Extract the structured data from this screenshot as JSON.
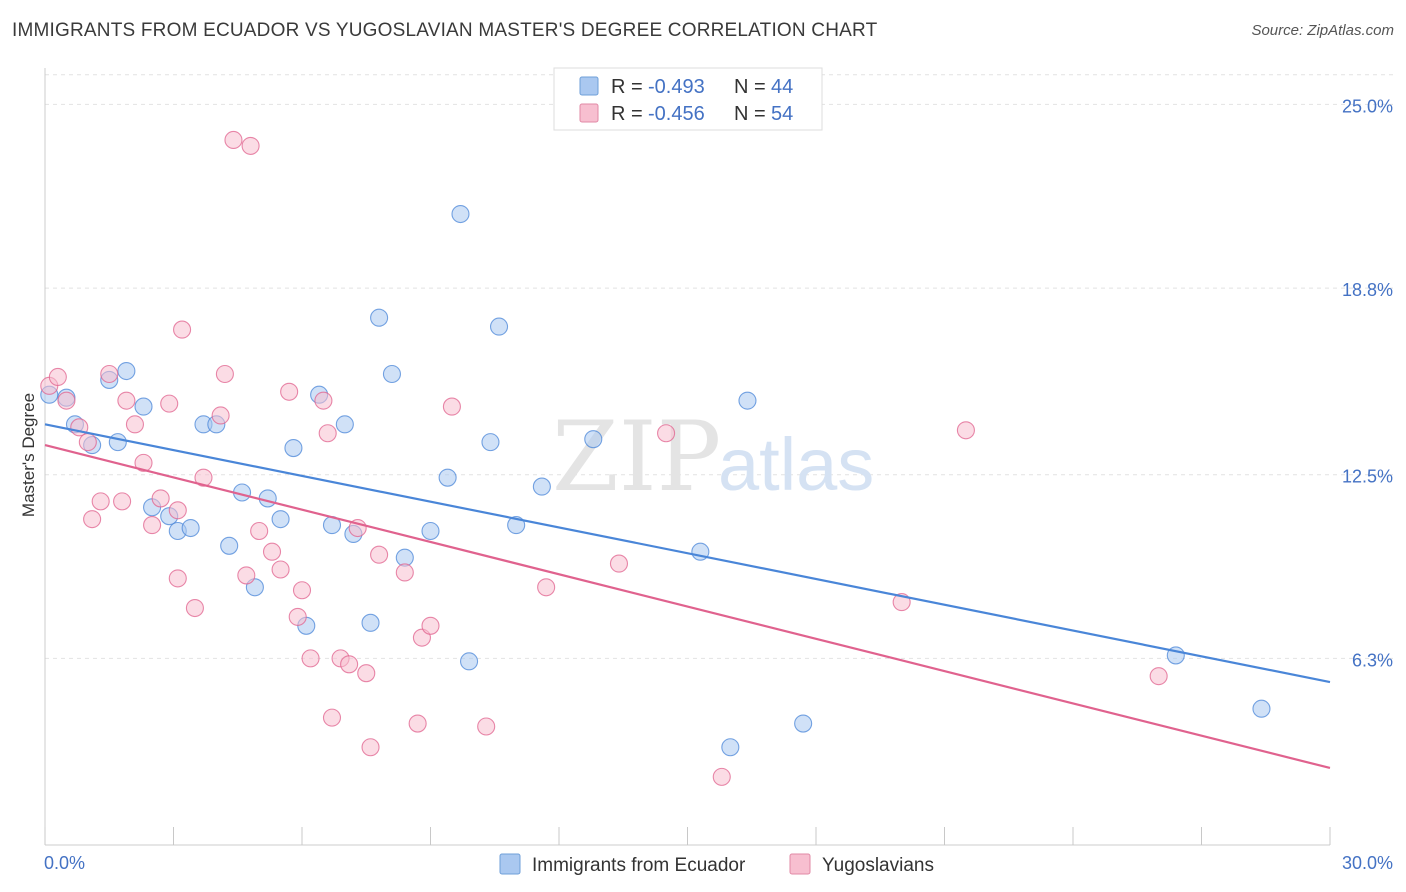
{
  "title": "IMMIGRANTS FROM ECUADOR VS YUGOSLAVIAN MASTER'S DEGREE CORRELATION CHART",
  "source": "Source: ZipAtlas.com",
  "watermark": {
    "part1": "ZIP",
    "part2": "atlas"
  },
  "legend": {
    "r_label": "R =",
    "n_label": "N =",
    "items": [
      {
        "r": "-0.493",
        "n": "44",
        "color": "#aac8f0",
        "stroke": "#6f9fd8"
      },
      {
        "r": "-0.456",
        "n": "54",
        "color": "#f7bfd0",
        "stroke": "#e28aa6"
      }
    ]
  },
  "bottom_legend": [
    {
      "label": "Immigrants from Ecuador",
      "color": "#aac8f0",
      "stroke": "#6f9fd8"
    },
    {
      "label": "Yugoslavians",
      "color": "#f7bfd0",
      "stroke": "#e28aa6"
    }
  ],
  "chart_data": {
    "type": "scatter",
    "title": "IMMIGRANTS FROM ECUADOR VS YUGOSLAVIAN MASTER'S DEGREE CORRELATION CHART",
    "xlabel": "",
    "ylabel": "Master's Degree",
    "xlim": [
      0,
      30
    ],
    "ylim": [
      0,
      26.5
    ],
    "x_tick_labels": [
      "0.0%",
      "30.0%"
    ],
    "y_ticks": [
      6.3,
      12.5,
      18.8,
      25.0
    ],
    "y_tick_labels": [
      "6.3%",
      "12.5%",
      "18.8%",
      "25.0%"
    ],
    "grid": true,
    "legend_position": "top-center",
    "series": [
      {
        "name": "Immigrants from Ecuador",
        "color": "#4a86d8",
        "fill": "#aac8f0",
        "trend": {
          "x": [
            0,
            30
          ],
          "y": [
            14.2,
            5.5
          ]
        },
        "points": [
          [
            0.1,
            15.2
          ],
          [
            0.5,
            15.1
          ],
          [
            0.7,
            14.2
          ],
          [
            1.1,
            13.5
          ],
          [
            1.5,
            15.7
          ],
          [
            1.7,
            13.6
          ],
          [
            1.9,
            16.0
          ],
          [
            2.3,
            14.8
          ],
          [
            2.5,
            11.4
          ],
          [
            2.9,
            11.1
          ],
          [
            3.1,
            10.6
          ],
          [
            3.4,
            10.7
          ],
          [
            3.7,
            14.2
          ],
          [
            4.0,
            14.2
          ],
          [
            4.3,
            10.1
          ],
          [
            4.6,
            11.9
          ],
          [
            4.9,
            8.7
          ],
          [
            5.2,
            11.7
          ],
          [
            5.5,
            11.0
          ],
          [
            5.8,
            13.4
          ],
          [
            6.1,
            7.4
          ],
          [
            6.4,
            15.2
          ],
          [
            6.7,
            10.8
          ],
          [
            7.0,
            14.2
          ],
          [
            7.2,
            10.5
          ],
          [
            7.6,
            7.5
          ],
          [
            7.8,
            17.8
          ],
          [
            8.1,
            15.9
          ],
          [
            8.4,
            9.7
          ],
          [
            9.0,
            10.6
          ],
          [
            9.4,
            12.4
          ],
          [
            9.7,
            21.3
          ],
          [
            9.9,
            6.2
          ],
          [
            10.4,
            13.6
          ],
          [
            10.6,
            17.5
          ],
          [
            11.0,
            10.8
          ],
          [
            11.6,
            12.1
          ],
          [
            12.8,
            13.7
          ],
          [
            15.3,
            9.9
          ],
          [
            16.0,
            3.3
          ],
          [
            16.4,
            15.0
          ],
          [
            17.7,
            4.1
          ],
          [
            26.4,
            6.4
          ],
          [
            28.4,
            4.6
          ]
        ]
      },
      {
        "name": "Yugoslavians",
        "color": "#e0628e",
        "fill": "#f7bfd0",
        "trend": {
          "x": [
            0,
            30
          ],
          "y": [
            13.5,
            2.6
          ]
        },
        "points": [
          [
            0.1,
            15.5
          ],
          [
            0.3,
            15.8
          ],
          [
            0.5,
            15.0
          ],
          [
            0.8,
            14.1
          ],
          [
            1.0,
            13.6
          ],
          [
            1.1,
            11.0
          ],
          [
            1.3,
            11.6
          ],
          [
            1.5,
            15.9
          ],
          [
            1.8,
            11.6
          ],
          [
            1.9,
            15.0
          ],
          [
            2.1,
            14.2
          ],
          [
            2.3,
            12.9
          ],
          [
            2.5,
            10.8
          ],
          [
            2.7,
            11.7
          ],
          [
            2.9,
            14.9
          ],
          [
            3.1,
            11.3
          ],
          [
            3.1,
            9.0
          ],
          [
            3.2,
            17.4
          ],
          [
            3.5,
            8.0
          ],
          [
            3.7,
            12.4
          ],
          [
            4.1,
            14.5
          ],
          [
            4.2,
            15.9
          ],
          [
            4.4,
            23.8
          ],
          [
            4.7,
            9.1
          ],
          [
            4.8,
            23.6
          ],
          [
            5.0,
            10.6
          ],
          [
            5.3,
            9.9
          ],
          [
            5.5,
            9.3
          ],
          [
            5.7,
            15.3
          ],
          [
            5.9,
            7.7
          ],
          [
            6.0,
            8.6
          ],
          [
            6.2,
            6.3
          ],
          [
            6.5,
            15.0
          ],
          [
            6.6,
            13.9
          ],
          [
            6.7,
            4.3
          ],
          [
            6.9,
            6.3
          ],
          [
            7.1,
            6.1
          ],
          [
            7.3,
            10.7
          ],
          [
            7.5,
            5.8
          ],
          [
            7.6,
            3.3
          ],
          [
            7.8,
            9.8
          ],
          [
            8.4,
            9.2
          ],
          [
            8.7,
            4.1
          ],
          [
            8.8,
            7.0
          ],
          [
            9.0,
            7.4
          ],
          [
            9.5,
            14.8
          ],
          [
            10.3,
            4.0
          ],
          [
            11.7,
            8.7
          ],
          [
            13.4,
            9.5
          ],
          [
            14.5,
            13.9
          ],
          [
            15.8,
            2.3
          ],
          [
            20.0,
            8.2
          ],
          [
            21.5,
            14.0
          ],
          [
            26.0,
            5.7
          ]
        ]
      }
    ]
  }
}
